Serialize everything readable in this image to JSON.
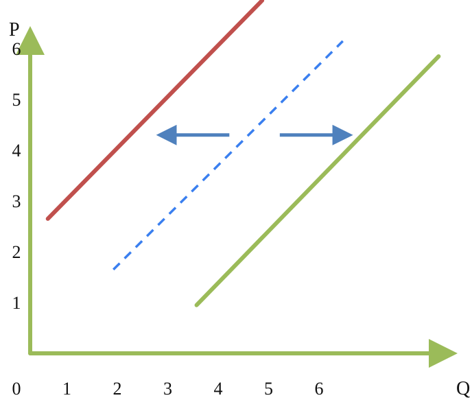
{
  "chart_data": {
    "type": "line",
    "title": "",
    "xlabel": "Q",
    "ylabel": "P",
    "xlim": [
      0,
      8.5
    ],
    "ylim": [
      0,
      6.6
    ],
    "x_ticks": [
      "0",
      "1",
      "2",
      "3",
      "4",
      "5",
      "6"
    ],
    "y_ticks": [
      "1",
      "2",
      "3",
      "4",
      "5",
      "6"
    ],
    "grid": false,
    "legend": "none",
    "axis_color": "#9bbb59",
    "series": [
      {
        "color": "#c0504d",
        "style": "solid",
        "x": [
          0.35,
          4.6
        ],
        "y": [
          2.65,
          6.95
        ]
      },
      {
        "color": "#3a7fef",
        "style": "dashed",
        "x": [
          1.65,
          6.2
        ],
        "y": [
          1.65,
          6.15
        ]
      },
      {
        "color": "#9bbb59",
        "style": "solid",
        "x": [
          3.3,
          8.1
        ],
        "y": [
          0.95,
          5.85
        ]
      }
    ],
    "annotations": [
      {
        "type": "arrow",
        "direction": "left",
        "color": "#4f81bd",
        "from": [
          3.95,
          4.3
        ],
        "to": [
          2.6,
          4.3
        ]
      },
      {
        "type": "arrow",
        "direction": "right",
        "color": "#4f81bd",
        "from": [
          4.95,
          4.3
        ],
        "to": [
          6.3,
          4.3
        ]
      }
    ]
  }
}
